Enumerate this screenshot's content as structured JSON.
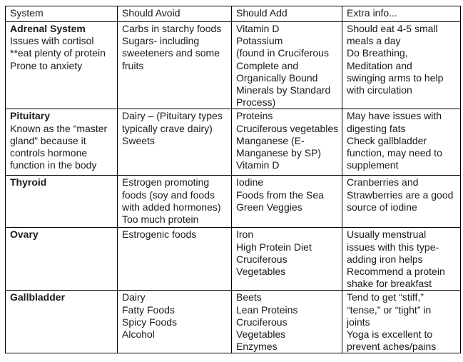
{
  "table": {
    "headers": {
      "system": "System",
      "avoid": "Should Avoid",
      "add": "Should Add",
      "extra": "Extra info..."
    },
    "rows": [
      {
        "system_name": "Adrenal System",
        "system_desc": [
          "Issues with cortisol",
          "**eat plenty of protein",
          "Prone to anxiety"
        ],
        "avoid": [
          "Carbs in starchy foods",
          "Sugars- including",
          "sweeteners and some",
          "fruits"
        ],
        "add": [
          "Vitamin D",
          "Potassium",
          "(found in Cruciferous",
          "Complete and",
          "Organically Bound",
          "Minerals by Standard",
          "Process)"
        ],
        "extra": [
          "Should eat 4-5 small",
          "meals a day",
          "Do Breathing,",
          "Meditation and",
          "swinging arms to help",
          "with circulation"
        ]
      },
      {
        "system_name": "Pituitary",
        "system_desc": [
          "Known as the “master",
          "gland” because it",
          "controls hormone",
          "function in the body"
        ],
        "avoid": [
          "Dairy – (Pituitary types",
          "typically crave dairy)",
          "Sweets"
        ],
        "add": [
          "Proteins",
          "Cruciferous vegetables",
          "Manganese (E-",
          "Manganese by SP)",
          "Vitamin D"
        ],
        "extra": [
          "May have issues with",
          "digesting fats",
          "Check gallbladder",
          "function, may need to",
          "supplement"
        ]
      },
      {
        "system_name": "Thyroid",
        "system_desc": [],
        "avoid": [
          "Estrogen promoting",
          "foods (soy and foods",
          "with added hormones)",
          "Too much protein"
        ],
        "add": [
          "Iodine",
          "Foods from the Sea",
          "Green Veggies"
        ],
        "extra": [
          "Cranberries and",
          "Strawberries are a good",
          "source of iodine"
        ]
      },
      {
        "system_name": "Ovary",
        "system_desc": [],
        "avoid": [
          "Estrogenic foods"
        ],
        "add": [
          "Iron",
          "High Protein Diet",
          "Cruciferous Vegetables"
        ],
        "extra": [
          "Usually menstrual",
          "issues with this type-",
          "adding iron helps",
          "Recommend a protein",
          "shake for breakfast"
        ]
      },
      {
        "system_name": "Gallbladder",
        "system_desc": [],
        "avoid": [
          "Dairy",
          "Fatty Foods",
          "Spicy Foods",
          "Alcohol"
        ],
        "add": [
          "Beets",
          "Lean Proteins",
          "Cruciferous Vegetables",
          "Enzymes"
        ],
        "extra": [
          "Tend to get “stiff,”",
          "“tense,” or “tight” in",
          "joints",
          "Yoga is excellent to",
          "prevent aches/pains"
        ]
      }
    ]
  }
}
